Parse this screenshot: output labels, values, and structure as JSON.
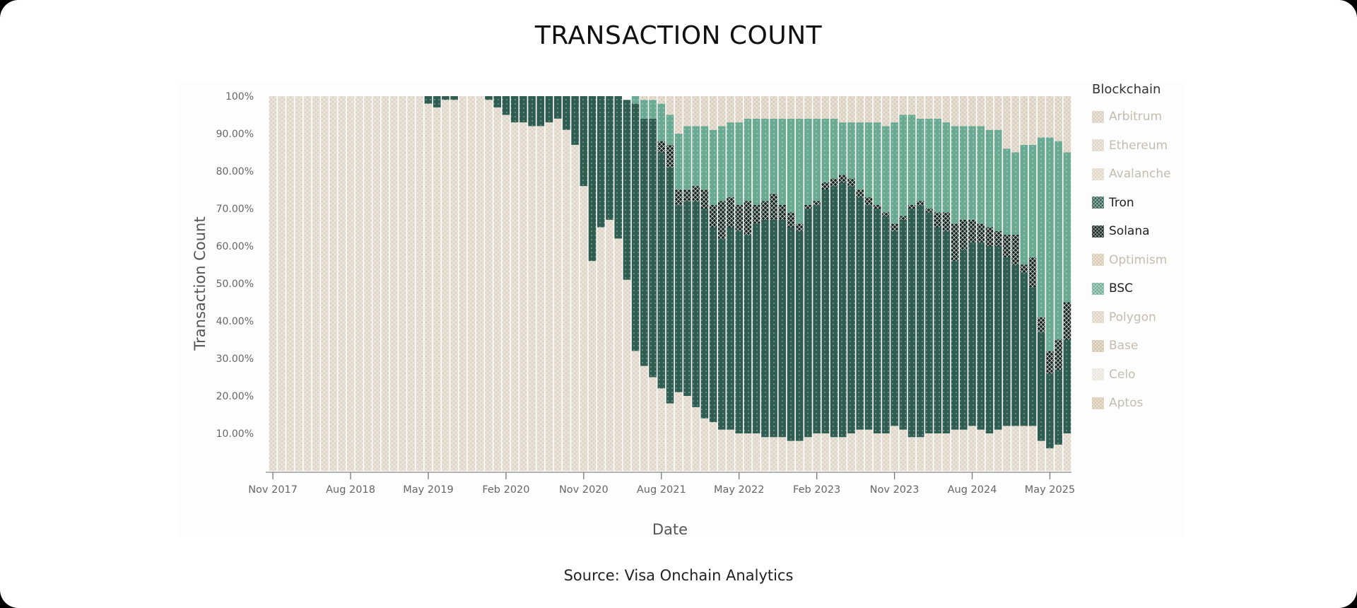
{
  "title": "TRANSACTION COUNT",
  "source": "Source: Visa Onchain Analytics",
  "legend": {
    "title": "Blockchain",
    "items": [
      {
        "label": "Arbitrum",
        "color": "#d8cdbd",
        "muted": true
      },
      {
        "label": "Ethereum",
        "color": "#ddd4c6",
        "muted": true
      },
      {
        "label": "Avalanche",
        "color": "#e0d6c4",
        "muted": true
      },
      {
        "label": "Tron",
        "color": "#2f5e50",
        "muted": false
      },
      {
        "label": "Solana",
        "color": "#142520",
        "muted": false
      },
      {
        "label": "Optimism",
        "color": "#d6c8ae",
        "muted": true
      },
      {
        "label": "BSC",
        "color": "#6aa992",
        "muted": false
      },
      {
        "label": "Polygon",
        "color": "#ddd3c3",
        "muted": true
      },
      {
        "label": "Base",
        "color": "#cfc2aa",
        "muted": true
      },
      {
        "label": "Celo",
        "color": "#e8e4dc",
        "muted": true
      },
      {
        "label": "Aptos",
        "color": "#d4c6ad",
        "muted": true
      }
    ]
  },
  "chart_data": {
    "type": "bar",
    "stacked": "100%",
    "title": "TRANSACTION COUNT",
    "xlabel": "Date",
    "ylabel": "Transaction Count",
    "ylim": [
      0,
      100
    ],
    "y_ticks": [
      "10.00%",
      "20.00%",
      "30.00%",
      "40.00%",
      "50.00%",
      "60.00%",
      "70.00%",
      "80.00%",
      "90.00%",
      "100%"
    ],
    "y_tick_values": [
      10,
      20,
      30,
      40,
      50,
      60,
      70,
      80,
      90,
      100
    ],
    "x_start": "Nov 2017",
    "x_end": "Jul 2025",
    "x_interval": "monthly",
    "x_ticks": [
      {
        "label": "Nov 2017",
        "index": 0
      },
      {
        "label": "Aug 2018",
        "index": 9
      },
      {
        "label": "May 2019",
        "index": 18
      },
      {
        "label": "Feb 2020",
        "index": 27
      },
      {
        "label": "Nov 2020",
        "index": 36
      },
      {
        "label": "Aug 2021",
        "index": 45
      },
      {
        "label": "May 2022",
        "index": 54
      },
      {
        "label": "Feb 2023",
        "index": 63
      },
      {
        "label": "Nov 2023",
        "index": 72
      },
      {
        "label": "Aug 2024",
        "index": 81
      },
      {
        "label": "May 2025",
        "index": 90
      }
    ],
    "legend_position": "right",
    "grid": false,
    "series": [
      {
        "name": "Ethereum",
        "color": "#ddd4c6",
        "values": [
          100,
          100,
          100,
          100,
          100,
          100,
          100,
          100,
          100,
          100,
          100,
          100,
          100,
          100,
          100,
          100,
          100,
          100,
          98,
          97,
          99,
          99,
          100,
          100,
          100,
          99,
          97,
          95,
          93,
          93,
          92,
          92,
          93,
          94,
          91,
          87,
          76,
          56,
          65,
          67,
          62,
          51,
          32,
          28,
          25,
          22,
          18,
          21,
          20,
          17,
          14,
          13,
          11,
          11,
          10,
          10,
          10,
          9,
          9,
          9,
          8,
          8,
          9,
          10,
          10,
          9,
          9,
          10,
          11,
          11,
          10,
          10,
          12,
          11,
          9,
          9,
          10,
          10,
          10,
          11,
          11,
          12,
          11,
          10,
          11,
          12,
          12,
          12,
          12,
          8,
          6,
          7,
          10
        ]
      },
      {
        "name": "Tron",
        "color": "#2f5e50",
        "values": [
          0,
          0,
          0,
          0,
          0,
          0,
          0,
          0,
          0,
          0,
          0,
          0,
          0,
          0,
          0,
          0,
          0,
          0,
          2,
          3,
          1,
          1,
          0,
          0,
          0,
          1,
          3,
          5,
          7,
          7,
          8,
          8,
          7,
          6,
          9,
          13,
          24,
          44,
          35,
          33,
          38,
          48,
          66,
          66,
          69,
          63,
          63,
          50,
          52,
          55,
          56,
          52,
          51,
          54,
          54,
          53,
          56,
          58,
          58,
          58,
          57,
          56,
          61,
          61,
          65,
          67,
          68,
          66,
          62,
          60,
          60,
          58,
          52,
          56,
          61,
          62,
          59,
          55,
          54,
          45,
          48,
          49,
          50,
          50,
          49,
          45,
          43,
          41,
          37,
          29,
          20,
          20,
          25
        ]
      },
      {
        "name": "Solana",
        "color": "#142520",
        "values": [
          0,
          0,
          0,
          0,
          0,
          0,
          0,
          0,
          0,
          0,
          0,
          0,
          0,
          0,
          0,
          0,
          0,
          0,
          0,
          0,
          0,
          0,
          0,
          0,
          0,
          0,
          0,
          0,
          0,
          0,
          0,
          0,
          0,
          0,
          0,
          0,
          0,
          0,
          0,
          0,
          0,
          0,
          0,
          0,
          0,
          3,
          6,
          4,
          3,
          4,
          5,
          6,
          10,
          8,
          7,
          9,
          5,
          5,
          7,
          4,
          4,
          2,
          1,
          1,
          2,
          2,
          2,
          2,
          2,
          2,
          1,
          1,
          2,
          1,
          1,
          1,
          1,
          4,
          5,
          10,
          8,
          6,
          5,
          5,
          4,
          6,
          8,
          2,
          8,
          4,
          6,
          8,
          10
        ]
      },
      {
        "name": "BSC",
        "color": "#6aa992",
        "values": [
          0,
          0,
          0,
          0,
          0,
          0,
          0,
          0,
          0,
          0,
          0,
          0,
          0,
          0,
          0,
          0,
          0,
          0,
          0,
          0,
          0,
          0,
          0,
          0,
          0,
          0,
          0,
          0,
          0,
          0,
          0,
          0,
          0,
          0,
          0,
          0,
          0,
          0,
          0,
          0,
          0,
          0,
          2,
          5,
          5,
          10,
          8,
          15,
          17,
          16,
          17,
          20,
          20,
          20,
          22,
          22,
          23,
          22,
          20,
          23,
          25,
          28,
          23,
          22,
          17,
          16,
          14,
          15,
          18,
          20,
          22,
          23,
          27,
          27,
          24,
          22,
          24,
          25,
          24,
          26,
          25,
          25,
          26,
          26,
          27,
          23,
          22,
          32,
          30,
          48,
          57,
          53,
          40
        ]
      },
      {
        "name": "Polygon",
        "color": "#d9cebd",
        "values": [
          0,
          0,
          0,
          0,
          0,
          0,
          0,
          0,
          0,
          0,
          0,
          0,
          0,
          0,
          0,
          0,
          0,
          0,
          0,
          0,
          0,
          0,
          0,
          0,
          0,
          0,
          0,
          0,
          0,
          0,
          0,
          0,
          0,
          0,
          0,
          0,
          0,
          0,
          0,
          0,
          0,
          0,
          0,
          1,
          1,
          2,
          5,
          10,
          8,
          8,
          8,
          9,
          8,
          7,
          7,
          6,
          6,
          6,
          6,
          6,
          6,
          6,
          6,
          6,
          6,
          6,
          7,
          7,
          7,
          7,
          7,
          8,
          7,
          5,
          5,
          6,
          6,
          6,
          7,
          8,
          8,
          8,
          8,
          9,
          9,
          14,
          15,
          13,
          13,
          11,
          11,
          12,
          15
        ]
      }
    ]
  }
}
